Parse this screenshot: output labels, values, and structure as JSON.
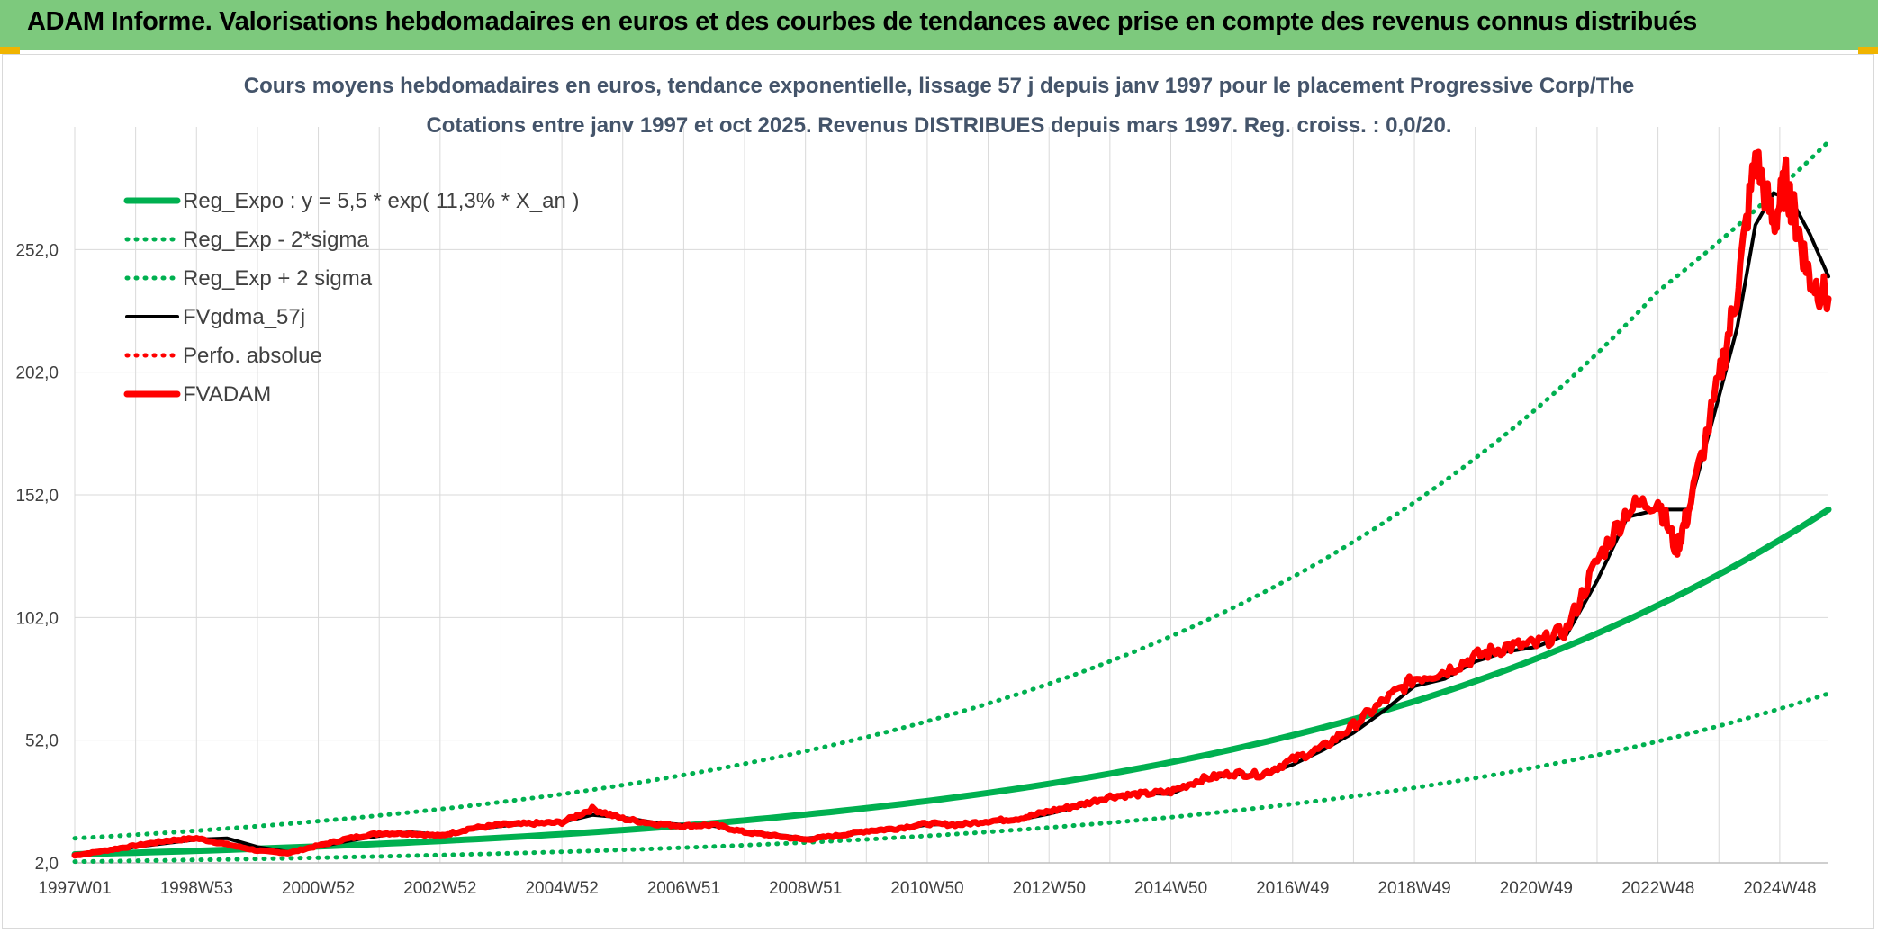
{
  "banner": {
    "title": "ADAM Informe. Valorisations hebdomadaires en euros et des courbes de tendances avec prise en compte des revenus connus distribués"
  },
  "colors": {
    "banner_bg": "#7dc97d",
    "reg_expo": "#00b050",
    "fvgdma": "#000000",
    "fvadam": "#ff0000",
    "grid": "#d9d9d9",
    "title": "#44546a"
  },
  "chart_data": {
    "type": "line",
    "title": "Cours moyens hebdomadaires en euros, tendance exponentielle, lissage 57 j depuis janv 1997 pour le placement Progressive Corp/The",
    "subtitle": "Cotations entre janv 1997 et oct 2025. Revenus DISTRIBUES depuis mars 1997. Reg. croiss. : 0,0/20.",
    "xlabel": "",
    "ylabel": "",
    "xlim": [
      1997.0,
      2025.8
    ],
    "ylim": [
      2.0,
      302.0
    ],
    "y_ticks": [
      {
        "value": 2,
        "label": "2,0"
      },
      {
        "value": 52,
        "label": "52,0"
      },
      {
        "value": 102,
        "label": "102,0"
      },
      {
        "value": 152,
        "label": "152,0"
      },
      {
        "value": 202,
        "label": "202,0"
      },
      {
        "value": 252,
        "label": "252,0"
      }
    ],
    "x_ticks": [
      {
        "value": 1997.0,
        "label": "1997W01"
      },
      {
        "value": 1999.0,
        "label": "1998W53"
      },
      {
        "value": 2001.0,
        "label": "2000W52"
      },
      {
        "value": 2003.0,
        "label": "2002W52"
      },
      {
        "value": 2005.0,
        "label": "2004W52"
      },
      {
        "value": 2007.0,
        "label": "2006W51"
      },
      {
        "value": 2009.0,
        "label": "2008W51"
      },
      {
        "value": 2011.0,
        "label": "2010W50"
      },
      {
        "value": 2013.0,
        "label": "2012W50"
      },
      {
        "value": 2015.0,
        "label": "2014W50"
      },
      {
        "value": 2017.0,
        "label": "2016W49"
      },
      {
        "value": 2019.0,
        "label": "2018W49"
      },
      {
        "value": 2021.0,
        "label": "2020W49"
      },
      {
        "value": 2023.0,
        "label": "2022W48"
      },
      {
        "value": 2025.0,
        "label": "2024W48"
      }
    ],
    "grid": true,
    "legend_position": "top-left",
    "series": [
      {
        "name": "Reg_Expo : y = 5,5 * exp( 11,3% *  X_an )",
        "style": "solid-thick",
        "color": "#00b050",
        "x": [
          1997,
          1999,
          2001,
          2003,
          2005,
          2007,
          2009,
          2011,
          2013,
          2015,
          2017,
          2019,
          2021,
          2023,
          2025.8
        ],
        "values": [
          5.5,
          6.9,
          8.7,
          10.9,
          13.7,
          17.2,
          21.7,
          27.2,
          34.2,
          43.0,
          54.0,
          67.8,
          85.2,
          107.0,
          146.0
        ]
      },
      {
        "name": "Reg_Exp - 2*sigma",
        "style": "dotted",
        "color": "#00b050",
        "x": [
          1997,
          1999,
          2001,
          2003,
          2005,
          2007,
          2009,
          2011,
          2013,
          2015,
          2017,
          2019,
          2021,
          2023,
          2025.8
        ],
        "values": [
          2.5,
          3.2,
          4.1,
          5.2,
          6.5,
          8.2,
          10.3,
          13.0,
          16.4,
          20.6,
          26.0,
          32.6,
          41.0,
          51.5,
          71.0
        ]
      },
      {
        "name": "Reg_Exp + 2 sigma",
        "style": "dotted",
        "color": "#00b050",
        "x": [
          1997,
          1999,
          2001,
          2003,
          2005,
          2007,
          2009,
          2011,
          2013,
          2015,
          2017,
          2019,
          2021,
          2023,
          2025.8
        ],
        "values": [
          12.0,
          15.1,
          19.0,
          23.9,
          30.0,
          37.8,
          47.5,
          59.7,
          75.0,
          94.3,
          118.5,
          149.0,
          187.0,
          235.0,
          296.0
        ]
      },
      {
        "name": "FVgdma_57j",
        "style": "solid",
        "color": "#000000",
        "x": [
          1997,
          1997.5,
          1998,
          1998.5,
          1999,
          1999.5,
          2000,
          2000.5,
          2001,
          2001.5,
          2002,
          2002.5,
          2003,
          2003.5,
          2004,
          2004.5,
          2005,
          2005.5,
          2006,
          2006.5,
          2007,
          2007.5,
          2008,
          2008.5,
          2009,
          2009.5,
          2010,
          2010.5,
          2011,
          2011.5,
          2012,
          2012.5,
          2013,
          2013.5,
          2014,
          2014.5,
          2015,
          2015.5,
          2016,
          2016.5,
          2017,
          2017.5,
          2018,
          2018.5,
          2019,
          2019.5,
          2020,
          2020.5,
          2021,
          2021.5,
          2022,
          2022.5,
          2023,
          2023.5,
          2024,
          2024.3,
          2024.6,
          2024.9,
          2025.2,
          2025.5,
          2025.8
        ],
        "values": [
          5.0,
          6.5,
          8.5,
          10.0,
          11.5,
          12.0,
          8.5,
          6.5,
          8.5,
          11.0,
          13.0,
          14.5,
          13.5,
          15.5,
          17.0,
          18.0,
          18.5,
          21.5,
          20.5,
          18.5,
          17.5,
          17.0,
          15.0,
          13.5,
          12.0,
          13.0,
          14.5,
          15.5,
          17.5,
          18.0,
          18.5,
          19.5,
          22.0,
          25.0,
          28.5,
          30.5,
          30.0,
          35.5,
          38.0,
          37.5,
          42.0,
          48.0,
          55.0,
          64.0,
          74.0,
          77.0,
          84.0,
          88.0,
          90.0,
          95.0,
          117.0,
          143.0,
          146.0,
          146.0,
          192.0,
          220.0,
          262.0,
          275.0,
          272.0,
          258.0,
          241.0
        ]
      },
      {
        "name": "Perfo. absolue",
        "style": "dotted",
        "color": "#ff0000",
        "x": [],
        "values": []
      },
      {
        "name": "FVADAM",
        "style": "solid-thick",
        "color": "#ff0000",
        "x": [
          1997,
          1997.5,
          1998,
          1998.5,
          1999,
          1999.5,
          2000,
          2000.5,
          2001,
          2001.5,
          2002,
          2002.5,
          2003,
          2003.5,
          2004,
          2004.5,
          2005,
          2005.5,
          2006,
          2006.5,
          2007,
          2007.5,
          2008,
          2008.5,
          2009,
          2009.5,
          2010,
          2010.5,
          2011,
          2011.5,
          2012,
          2012.5,
          2013,
          2013.5,
          2014,
          2014.5,
          2015,
          2015.5,
          2016,
          2016.5,
          2017,
          2017.5,
          2018,
          2018.5,
          2019,
          2019.5,
          2020,
          2020.5,
          2021,
          2021.5,
          2022,
          2022.5,
          2023,
          2023.3,
          2023.5,
          2024,
          2024.3,
          2024.6,
          2024.9,
          2025.1,
          2025.3,
          2025.5,
          2025.8
        ],
        "values": [
          5.0,
          7.0,
          9.0,
          11.0,
          12.0,
          9.5,
          7.0,
          6.0,
          9.0,
          12.0,
          14.0,
          14.0,
          13.0,
          16.0,
          17.5,
          18.0,
          18.5,
          24.0,
          20.0,
          18.0,
          17.0,
          17.5,
          14.5,
          13.0,
          11.5,
          13.0,
          15.0,
          16.0,
          18.0,
          17.5,
          19.0,
          20.0,
          23.0,
          25.5,
          29.0,
          30.0,
          31.0,
          36.0,
          38.5,
          38.0,
          44.0,
          49.0,
          58.0,
          68.0,
          77.0,
          80.0,
          86.0,
          90.0,
          91.0,
          97.0,
          125.0,
          146.0,
          150.0,
          130.0,
          145.0,
          198.0,
          235.0,
          290.0,
          262.0,
          280.0,
          260.0,
          240.0,
          232.0
        ]
      }
    ]
  }
}
